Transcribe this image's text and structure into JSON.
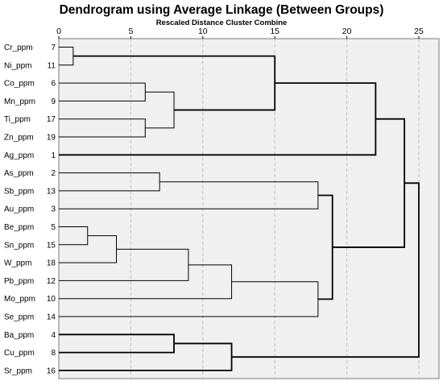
{
  "chart_data": {
    "type": "dendrogram",
    "title": "Dendrogram using Average Linkage (Between Groups)",
    "subtitle": "Rescaled Distance Cluster Combine",
    "x_ticks": [
      "0",
      "5",
      "10",
      "15",
      "20",
      "25"
    ],
    "xlim": [
      0,
      25
    ],
    "grid": true,
    "leaves": [
      {
        "label": "Cr_ppm",
        "case": "7"
      },
      {
        "label": "Ni_ppm",
        "case": "11"
      },
      {
        "label": "Co_ppm",
        "case": "6"
      },
      {
        "label": "Mn_ppm",
        "case": "9"
      },
      {
        "label": "Ti_ppm",
        "case": "17"
      },
      {
        "label": "Zn_ppm",
        "case": "19"
      },
      {
        "label": "Ag_ppm",
        "case": "1"
      },
      {
        "label": "As_ppm",
        "case": "2"
      },
      {
        "label": "Sb_ppm",
        "case": "13"
      },
      {
        "label": "Au_ppm",
        "case": "3"
      },
      {
        "label": "Be_ppm",
        "case": "5"
      },
      {
        "label": "Sn_ppm",
        "case": "15"
      },
      {
        "label": "W_ppm",
        "case": "18"
      },
      {
        "label": "Pb_ppm",
        "case": "12"
      },
      {
        "label": "Mo_ppm",
        "case": "10"
      },
      {
        "label": "Se_ppm",
        "case": "14"
      },
      {
        "label": "Ba_ppm",
        "case": "4"
      },
      {
        "label": "Cu_ppm",
        "case": "8"
      },
      {
        "label": "Sr_ppm",
        "case": "16"
      }
    ],
    "merges": [
      {
        "id": "A",
        "children": [
          "L0",
          "L1"
        ],
        "distance": 1.0
      },
      {
        "id": "B",
        "children": [
          "L2",
          "L3"
        ],
        "distance": 6.0
      },
      {
        "id": "C",
        "children": [
          "L4",
          "L5"
        ],
        "distance": 6.0
      },
      {
        "id": "D",
        "children": [
          "B",
          "C"
        ],
        "distance": 8.0
      },
      {
        "id": "E",
        "children": [
          "A",
          "D"
        ],
        "distance": 15.0
      },
      {
        "id": "F",
        "children": [
          "E",
          "L6"
        ],
        "distance": 22.0
      },
      {
        "id": "G",
        "children": [
          "L7",
          "L8"
        ],
        "distance": 7.0
      },
      {
        "id": "H",
        "children": [
          "G",
          "L9"
        ],
        "distance": 18.0
      },
      {
        "id": "I",
        "children": [
          "L10",
          "L11"
        ],
        "distance": 2.0
      },
      {
        "id": "J",
        "children": [
          "I",
          "L12"
        ],
        "distance": 4.0
      },
      {
        "id": "K",
        "children": [
          "J",
          "L13"
        ],
        "distance": 9.0
      },
      {
        "id": "M",
        "children": [
          "K",
          "L14"
        ],
        "distance": 12.0
      },
      {
        "id": "N",
        "children": [
          "M",
          "L15"
        ],
        "distance": 18.0
      },
      {
        "id": "O",
        "children": [
          "H",
          "N"
        ],
        "distance": 19.0
      },
      {
        "id": "P",
        "children": [
          "F",
          "O"
        ],
        "distance": 24.0
      },
      {
        "id": "Q",
        "children": [
          "L16",
          "L17"
        ],
        "distance": 8.0
      },
      {
        "id": "R",
        "children": [
          "Q",
          "L18"
        ],
        "distance": 12.0
      },
      {
        "id": "S",
        "children": [
          "P",
          "R"
        ],
        "distance": 25.0
      }
    ]
  }
}
